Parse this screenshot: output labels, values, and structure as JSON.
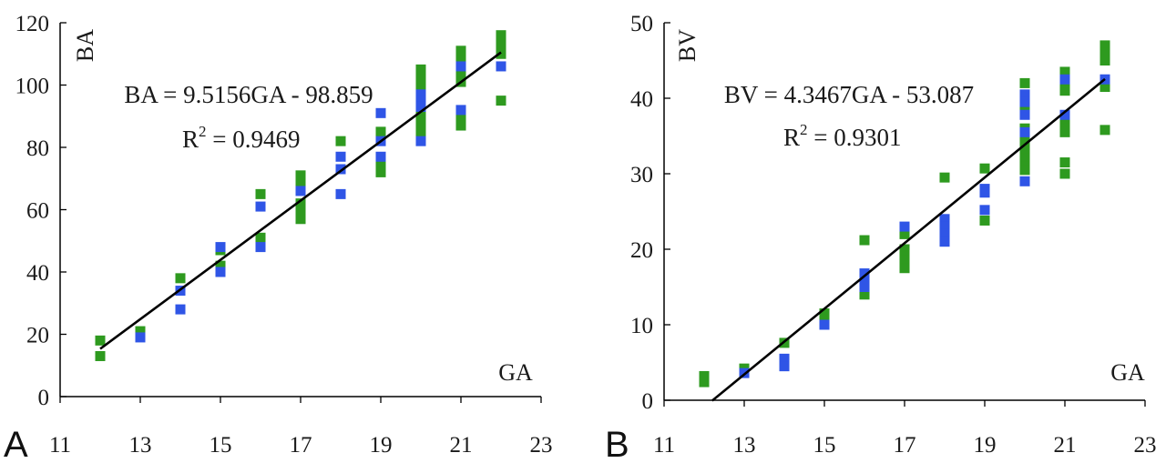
{
  "figure": {
    "colors": {
      "series_green": "#2e9a1f",
      "series_blue": "#2f55e6",
      "trendline": "#000000",
      "axis": "#000000"
    }
  },
  "chart_data": [
    {
      "panel_label": "A",
      "type": "scatter",
      "title": "",
      "xlabel": "GA",
      "ylabel": "BA",
      "xlim": [
        11,
        23
      ],
      "ylim": [
        0,
        120
      ],
      "xticks": [
        "11",
        "13",
        "15",
        "17",
        "19",
        "21",
        "23"
      ],
      "yticks": [
        "0",
        "20",
        "40",
        "60",
        "80",
        "100",
        "120"
      ],
      "grid": false,
      "legend": "none",
      "annotations": {
        "equation": "BA = 9.5156GA - 98.859",
        "r2_lhs": "R",
        "r2_sup": "2",
        "r2_rhs": " = 0.9469"
      },
      "trendline": {
        "slope": 9.5156,
        "intercept": -98.859,
        "x_range": [
          12,
          22
        ]
      },
      "series": [
        {
          "color": "#2e9a1f",
          "points": [
            [
              12,
              18
            ],
            [
              12,
              13
            ],
            [
              13,
              21
            ],
            [
              14,
              38
            ],
            [
              15,
              47
            ],
            [
              15,
              42
            ],
            [
              16,
              65
            ],
            [
              16,
              51
            ],
            [
              17,
              71
            ],
            [
              17,
              68
            ],
            [
              17,
              62
            ],
            [
              17,
              60
            ],
            [
              17,
              57
            ],
            [
              18,
              82
            ],
            [
              19,
              85
            ],
            [
              19,
              83
            ],
            [
              19,
              75
            ],
            [
              19,
              72
            ],
            [
              20,
              105
            ],
            [
              20,
              102
            ],
            [
              20,
              99
            ],
            [
              20,
              93
            ],
            [
              20,
              91
            ],
            [
              20,
              88
            ],
            [
              20,
              86
            ],
            [
              20,
              84
            ],
            [
              21,
              111
            ],
            [
              21,
              108
            ],
            [
              21,
              103
            ],
            [
              21,
              101
            ],
            [
              21,
              89
            ],
            [
              21,
              87
            ],
            [
              22,
              116
            ],
            [
              22,
              113
            ],
            [
              22,
              110
            ],
            [
              22,
              95
            ]
          ]
        },
        {
          "color": "#2f55e6",
          "points": [
            [
              13,
              19
            ],
            [
              14,
              34
            ],
            [
              14,
              28
            ],
            [
              15,
              48
            ],
            [
              15,
              40
            ],
            [
              16,
              61
            ],
            [
              16,
              48
            ],
            [
              17,
              66
            ],
            [
              18,
              77
            ],
            [
              18,
              73
            ],
            [
              18,
              65
            ],
            [
              19,
              91
            ],
            [
              19,
              82
            ],
            [
              19,
              77
            ],
            [
              20,
              97
            ],
            [
              20,
              95
            ],
            [
              20,
              93
            ],
            [
              20,
              82
            ],
            [
              21,
              106
            ],
            [
              21,
              92
            ],
            [
              22,
              106
            ]
          ]
        }
      ]
    },
    {
      "panel_label": "B",
      "type": "scatter",
      "title": "",
      "xlabel": "GA",
      "ylabel": "BV",
      "xlim": [
        11,
        23
      ],
      "ylim": [
        0,
        50
      ],
      "xticks": [
        "11",
        "13",
        "15",
        "17",
        "19",
        "21",
        "23"
      ],
      "yticks": [
        "0",
        "10",
        "20",
        "30",
        "40",
        "50"
      ],
      "grid": false,
      "legend": "none",
      "annotations": {
        "equation": "BV = 4.3467GA - 53.087",
        "r2_lhs": "R",
        "r2_sup": "2",
        "r2_rhs": " = 0.9301"
      },
      "trendline": {
        "slope": 4.3467,
        "intercept": -53.087,
        "x_range": [
          12.2,
          22
        ]
      },
      "series": [
        {
          "color": "#2e9a1f",
          "points": [
            [
              12,
              3.2
            ],
            [
              12,
              2.4
            ],
            [
              13,
              4.2
            ],
            [
              14,
              7.6
            ],
            [
              15,
              11.5
            ],
            [
              15,
              10.2
            ],
            [
              16,
              21.2
            ],
            [
              16,
              14
            ],
            [
              17,
              22
            ],
            [
              17,
              20
            ],
            [
              17,
              19
            ],
            [
              17,
              18.5
            ],
            [
              17,
              17.5
            ],
            [
              18,
              29.5
            ],
            [
              19,
              30.7
            ],
            [
              19,
              23.8
            ],
            [
              20,
              42
            ],
            [
              20,
              38.5
            ],
            [
              20,
              36
            ],
            [
              20,
              35
            ],
            [
              20,
              34
            ],
            [
              20,
              33
            ],
            [
              20,
              32
            ],
            [
              20,
              31
            ],
            [
              20,
              30.5
            ],
            [
              21,
              43.5
            ],
            [
              21,
              42
            ],
            [
              21,
              41
            ],
            [
              21,
              37
            ],
            [
              21,
              36
            ],
            [
              21,
              35.5
            ],
            [
              21,
              31.5
            ],
            [
              21,
              30
            ],
            [
              22,
              47
            ],
            [
              22,
              46
            ],
            [
              22,
              45
            ],
            [
              22,
              41.5
            ],
            [
              22,
              35.8
            ]
          ]
        },
        {
          "color": "#2f55e6",
          "points": [
            [
              13,
              3.6
            ],
            [
              14,
              5.5
            ],
            [
              14,
              4.5
            ],
            [
              15,
              10
            ],
            [
              16,
              16.8
            ],
            [
              16,
              16
            ],
            [
              16,
              15
            ],
            [
              17,
              23
            ],
            [
              18,
              24
            ],
            [
              18,
              23
            ],
            [
              18,
              22
            ],
            [
              18,
              21
            ],
            [
              19,
              28
            ],
            [
              19,
              27.5
            ],
            [
              19,
              25.2
            ],
            [
              20,
              40.5
            ],
            [
              20,
              39.5
            ],
            [
              20,
              37.8
            ],
            [
              20,
              35.5
            ],
            [
              20,
              29
            ],
            [
              21,
              42.5
            ],
            [
              21,
              37.8
            ],
            [
              22,
              42.5
            ]
          ]
        }
      ]
    }
  ]
}
